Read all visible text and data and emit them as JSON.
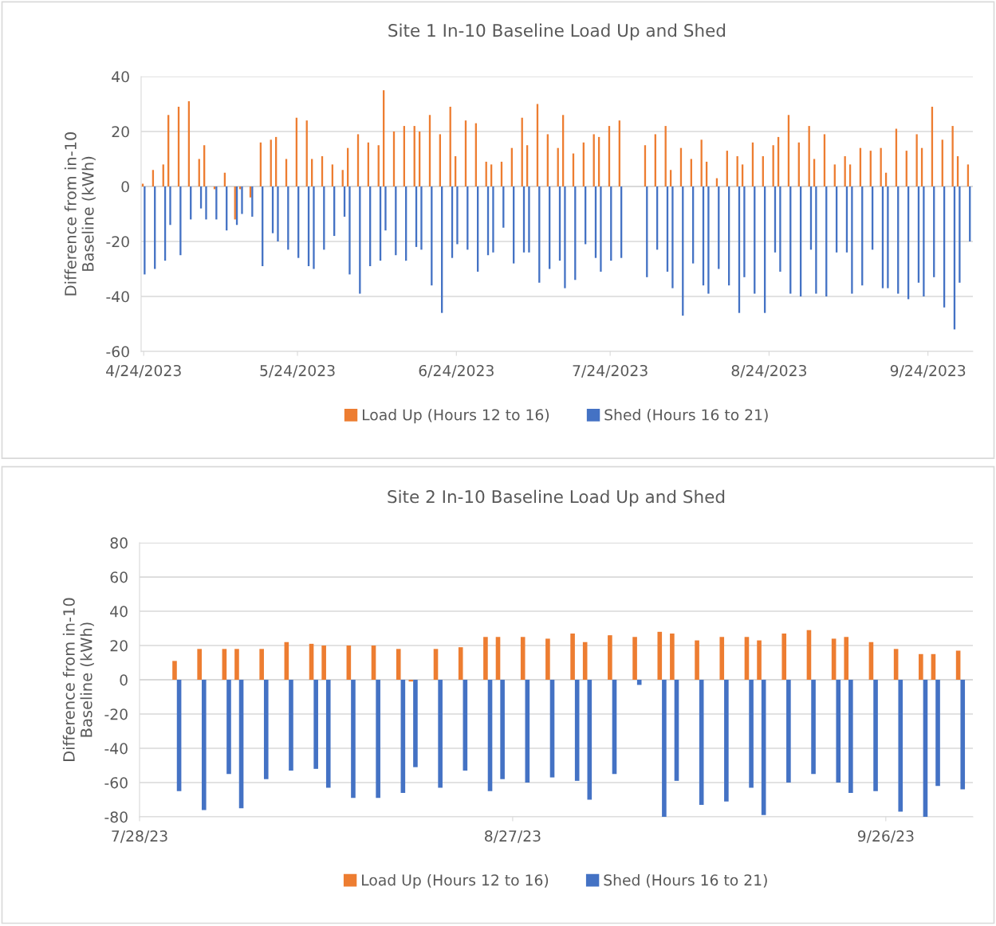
{
  "chart_data": [
    {
      "type": "bar",
      "title": "Site 1 In-10 Baseline Load Up and Shed",
      "ylabel": "Difference from in-10\nBaseline (kWh)",
      "x": [
        "2023-04-24",
        "2023-04-26",
        "2023-04-28",
        "2023-04-29",
        "2023-05-01",
        "2023-05-03",
        "2023-05-05",
        "2023-05-06",
        "2023-05-08",
        "2023-05-10",
        "2023-05-12",
        "2023-05-13",
        "2023-05-15",
        "2023-05-17",
        "2023-05-19",
        "2023-05-20",
        "2023-05-22",
        "2023-05-24",
        "2023-05-26",
        "2023-05-27",
        "2023-05-29",
        "2023-05-31",
        "2023-06-02",
        "2023-06-03",
        "2023-06-05",
        "2023-06-07",
        "2023-06-09",
        "2023-06-10",
        "2023-06-12",
        "2023-06-14",
        "2023-06-16",
        "2023-06-17",
        "2023-06-19",
        "2023-06-21",
        "2023-06-23",
        "2023-06-24",
        "2023-06-26",
        "2023-06-28",
        "2023-06-30",
        "2023-07-01",
        "2023-07-03",
        "2023-07-05",
        "2023-07-07",
        "2023-07-08",
        "2023-07-10",
        "2023-07-12",
        "2023-07-14",
        "2023-07-15",
        "2023-07-17",
        "2023-07-19",
        "2023-07-21",
        "2023-07-22",
        "2023-07-24",
        "2023-07-26",
        "2023-07-31",
        "2023-08-02",
        "2023-08-04",
        "2023-08-05",
        "2023-08-07",
        "2023-08-09",
        "2023-08-11",
        "2023-08-12",
        "2023-08-14",
        "2023-08-16",
        "2023-08-18",
        "2023-08-19",
        "2023-08-21",
        "2023-08-23",
        "2023-08-25",
        "2023-08-26",
        "2023-08-28",
        "2023-08-30",
        "2023-09-01",
        "2023-09-02",
        "2023-09-04",
        "2023-09-06",
        "2023-09-08",
        "2023-09-09",
        "2023-09-11",
        "2023-09-13",
        "2023-09-15",
        "2023-09-16",
        "2023-09-18",
        "2023-09-20",
        "2023-09-22",
        "2023-09-23",
        "2023-09-25",
        "2023-09-27",
        "2023-09-29",
        "2023-09-30",
        "2023-10-02"
      ],
      "series": [
        {
          "name": "Load Up (Hours 12 to 16)",
          "color": "#ed7d31",
          "values": [
            1,
            6,
            8,
            26,
            29,
            31,
            10,
            15,
            -1,
            5,
            -12,
            -1,
            -4,
            16,
            17,
            18,
            10,
            25,
            24,
            10,
            11,
            8,
            6,
            14,
            19,
            16,
            15,
            35,
            20,
            22,
            22,
            20,
            26,
            19,
            29,
            11,
            24,
            23,
            9,
            8,
            9,
            14,
            25,
            15,
            30,
            19,
            14,
            26,
            12,
            16,
            19,
            18,
            22,
            24,
            15,
            19,
            22,
            6,
            14,
            10,
            17,
            9,
            3,
            13,
            11,
            8,
            16,
            11,
            15,
            18,
            26,
            16,
            22,
            10,
            19,
            8,
            11,
            8,
            14,
            13,
            14,
            5,
            21,
            13,
            19,
            14,
            29,
            17,
            22,
            11,
            8
          ]
        },
        {
          "name": "Shed (Hours 16 to 21)",
          "color": "#4472c4",
          "values": [
            -32,
            -30,
            -27,
            -14,
            -25,
            -12,
            -8,
            -12,
            -12,
            -16,
            -14,
            -10,
            -11,
            -29,
            -17,
            -20,
            -23,
            -26,
            -29,
            -30,
            -23,
            -18,
            -11,
            -32,
            -39,
            -29,
            -27,
            -16,
            -25,
            -27,
            -22,
            -23,
            -36,
            -46,
            -26,
            -21,
            -23,
            -31,
            -25,
            -24,
            -15,
            -28,
            -24,
            -24,
            -35,
            -30,
            -27,
            -37,
            -34,
            -21,
            -26,
            -31,
            -27,
            -26,
            -33,
            -23,
            -31,
            -37,
            -47,
            -28,
            -36,
            -39,
            -30,
            -36,
            -46,
            -33,
            -39,
            -46,
            -24,
            -31,
            -39,
            -40,
            -23,
            -39,
            -40,
            -24,
            -24,
            -39,
            -36,
            -23,
            -37,
            -37,
            -39,
            -41,
            -35,
            -40,
            -33,
            -44,
            -52,
            -35,
            -20
          ]
        }
      ],
      "xlim": [
        "2023-04-23T12:00",
        "2023-10-02T18:00"
      ],
      "xticks": [
        {
          "value": "2023-04-24",
          "label": "4/24/2023"
        },
        {
          "value": "2023-05-24",
          "label": "5/24/2023"
        },
        {
          "value": "2023-06-24",
          "label": "6/24/2023"
        },
        {
          "value": "2023-07-24",
          "label": "7/24/2023"
        },
        {
          "value": "2023-08-24",
          "label": "8/24/2023"
        },
        {
          "value": "2023-09-24",
          "label": "9/24/2023"
        }
      ],
      "ylim": [
        -60,
        40
      ],
      "yticks": [
        -60,
        -40,
        -20,
        0,
        20,
        40
      ],
      "grid": "y",
      "legend": "bottom"
    },
    {
      "type": "bar",
      "title": "Site 2 In-10 Baseline Load Up and Shed",
      "ylabel": "Difference from in-10\nBaseline (kWh)",
      "x": [
        "2023-07-31",
        "2023-08-02",
        "2023-08-04",
        "2023-08-05",
        "2023-08-07",
        "2023-08-09",
        "2023-08-11",
        "2023-08-12",
        "2023-08-14",
        "2023-08-16",
        "2023-08-18",
        "2023-08-19",
        "2023-08-21",
        "2023-08-23",
        "2023-08-25",
        "2023-08-26",
        "2023-08-28",
        "2023-08-30",
        "2023-09-01",
        "2023-09-02",
        "2023-09-04",
        "2023-09-06",
        "2023-09-08",
        "2023-09-09",
        "2023-09-11",
        "2023-09-13",
        "2023-09-15",
        "2023-09-16",
        "2023-09-18",
        "2023-09-20",
        "2023-09-22",
        "2023-09-23",
        "2023-09-25",
        "2023-09-27",
        "2023-09-29",
        "2023-09-30",
        "2023-10-02"
      ],
      "series": [
        {
          "name": "Load Up (Hours 12 to 16)",
          "color": "#ed7d31",
          "values": [
            11,
            18,
            18,
            18,
            18,
            22,
            21,
            20,
            20,
            20,
            18,
            -1,
            18,
            19,
            25,
            25,
            25,
            24,
            27,
            22,
            26,
            25,
            28,
            27,
            23,
            25,
            25,
            23,
            27,
            29,
            24,
            25,
            22,
            18,
            15,
            15,
            17
          ]
        },
        {
          "name": "Shed (Hours 16 to 21)",
          "color": "#4472c4",
          "values": [
            -65,
            -76,
            -55,
            -75,
            -58,
            -53,
            -52,
            -63,
            -69,
            -69,
            -66,
            -51,
            -63,
            -53,
            -65,
            -58,
            -60,
            -57,
            -59,
            -70,
            -55,
            -3,
            -80,
            -59,
            -73,
            -71,
            -63,
            -79,
            -60,
            -55,
            -60,
            -66,
            -65,
            -77,
            -80,
            -62,
            -64
          ]
        }
      ],
      "xlim": [
        "2023-07-28",
        "2023-10-03"
      ],
      "xticks": [
        {
          "value": "2023-07-28",
          "label": "7/28/23"
        },
        {
          "value": "2023-08-27",
          "label": "8/27/23"
        },
        {
          "value": "2023-09-26",
          "label": "9/26/23"
        }
      ],
      "ylim": [
        -80,
        80
      ],
      "yticks": [
        -80,
        -60,
        -40,
        -20,
        0,
        20,
        40,
        60,
        80
      ],
      "grid": "y",
      "legend": "bottom"
    }
  ]
}
